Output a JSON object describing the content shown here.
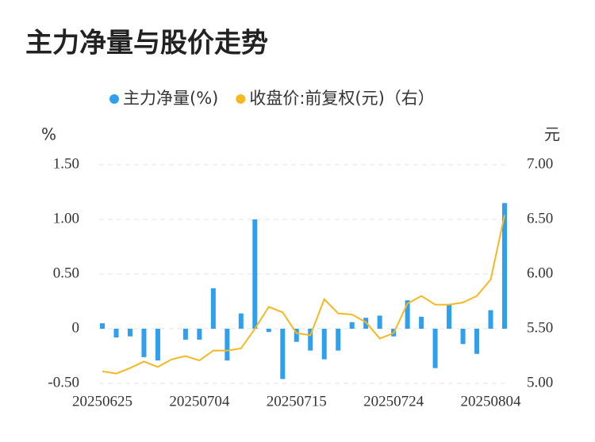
{
  "chart_data": {
    "type": "bar_line",
    "title": "主力净量与股价走势",
    "y_label": "%",
    "y2_label": "元",
    "categories": [
      "20250625",
      null,
      null,
      null,
      null,
      null,
      null,
      "20250704",
      null,
      null,
      null,
      null,
      null,
      null,
      "20250715",
      null,
      null,
      null,
      null,
      null,
      null,
      "20250724",
      null,
      null,
      null,
      null,
      null,
      null,
      "20250804",
      null
    ],
    "series": [
      {
        "name": "主力净量(%)",
        "type": "bar",
        "color": "#2f9ff0",
        "values": [
          0.05,
          -0.08,
          -0.07,
          -0.26,
          -0.29,
          0,
          -0.1,
          -0.1,
          0.37,
          -0.29,
          0.14,
          1.0,
          -0.03,
          -0.46,
          -0.12,
          -0.2,
          -0.28,
          -0.2,
          0.06,
          0.1,
          0.12,
          -0.07,
          0.26,
          0.11,
          -0.36,
          0.22,
          -0.14,
          -0.23,
          0.17,
          1.15
        ]
      },
      {
        "name": "收盘价:前复权(元)（右）",
        "type": "line",
        "axis": "y2",
        "color": "#f5b820",
        "values": [
          5.11,
          5.09,
          5.14,
          5.2,
          5.15,
          5.22,
          5.25,
          5.21,
          5.3,
          5.3,
          5.32,
          5.5,
          5.7,
          5.65,
          5.46,
          5.44,
          5.77,
          5.64,
          5.63,
          5.56,
          5.41,
          5.46,
          5.73,
          5.8,
          5.72,
          5.72,
          5.74,
          5.8,
          5.95,
          6.54
        ]
      }
    ],
    "ylim": [
      -0.5,
      1.5
    ],
    "yticks": [
      {
        "value": -0.5,
        "label": "-0.50"
      },
      0,
      {
        "value": 0.5,
        "label": "0.50"
      },
      {
        "value": 1.0,
        "label": "1.00"
      },
      {
        "value": 1.5,
        "label": "1.50"
      }
    ],
    "y2lim": [
      5.0,
      7.0
    ],
    "y2ticks": [
      {
        "value": 5.0,
        "label": "5.00"
      },
      {
        "value": 5.5,
        "label": "5.50"
      },
      {
        "value": 6.0,
        "label": "6.00"
      },
      {
        "value": 6.5,
        "label": "6.50"
      },
      {
        "value": 7.0,
        "label": "7.00"
      }
    ],
    "grid": true,
    "legend": "top"
  }
}
